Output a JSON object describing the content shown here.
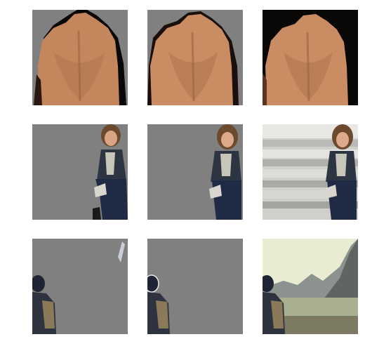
{
  "grid": {
    "rows": [
      {
        "subject": "back-of-shirtless-man",
        "tiles": [
          "mask-result-a",
          "mask-result-b",
          "original-photo"
        ]
      },
      {
        "subject": "woman-sitting-on-stairs",
        "tiles": [
          "mask-result-a",
          "mask-result-b",
          "original-photo"
        ]
      },
      {
        "subject": "person-looking-at-mountain-landscape",
        "tiles": [
          "mask-result-a",
          "mask-result-b",
          "original-photo"
        ]
      }
    ]
  },
  "colors": {
    "background_grey": "#808080",
    "skin": "#c98c63",
    "skin_shadow": "#7a4a2e",
    "dark": "#0a0707",
    "jeans": "#1f2a44",
    "hair": "#6b4a2e",
    "sky": "#e9ecd2",
    "mountain": "#6f7570",
    "water": "#a9b08f"
  }
}
